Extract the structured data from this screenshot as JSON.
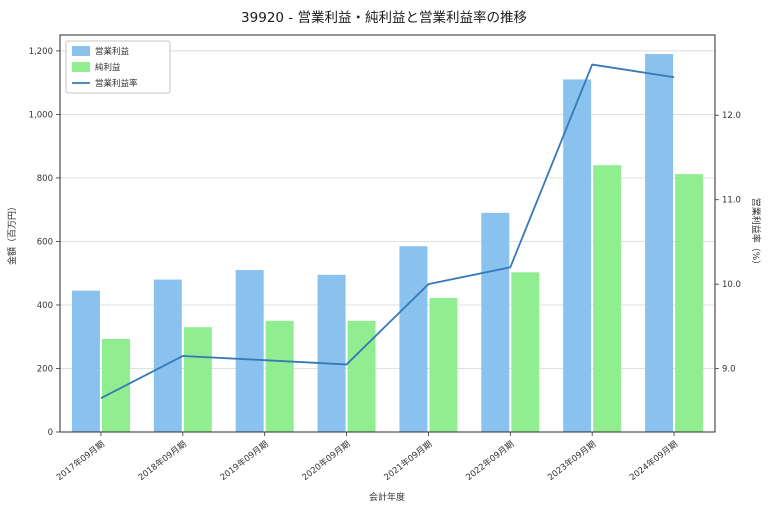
{
  "title": "39920 - 営業利益・純利益と営業利益率の推移",
  "chart_data": {
    "type": "bar",
    "title": "39920 - 営業利益・純利益と営業利益率の推移",
    "categories": [
      "2017年09月期",
      "2018年09月期",
      "2019年09月期",
      "2020年09月期",
      "2021年09月期",
      "2022年09月期",
      "2023年09月期",
      "2024年09月期"
    ],
    "series": [
      {
        "name": "営業利益",
        "type": "bar",
        "axis": "left",
        "color": "#89c2ef",
        "values": [
          445,
          480,
          510,
          495,
          585,
          690,
          1110,
          1190
        ]
      },
      {
        "name": "純利益",
        "type": "bar",
        "axis": "left",
        "color": "#90ee90",
        "values": [
          293,
          330,
          350,
          350,
          422,
          503,
          840,
          812
        ]
      },
      {
        "name": "営業利益率",
        "type": "line",
        "axis": "right",
        "color": "#357ab7",
        "values": [
          8.65,
          9.15,
          9.1,
          9.05,
          10.0,
          10.2,
          12.6,
          12.45
        ]
      }
    ],
    "xlabel": "会計年度",
    "ylabel_left": "金額（百万円）",
    "ylabel_right": "営業利益率（%）",
    "ylim_left": [
      0,
      1250
    ],
    "ytick_values_left": [
      0,
      200,
      400,
      600,
      800,
      1000,
      1200
    ],
    "ytick_labels_left": [
      "0",
      "200",
      "400",
      "600",
      "800",
      "1,000",
      "1,200"
    ],
    "ylim_right": [
      8.25,
      12.95
    ],
    "ytick_values_right": [
      9.0,
      10.0,
      11.0,
      12.0
    ],
    "ytick_labels_right": [
      "9.0",
      "10.0",
      "11.0",
      "12.0"
    ],
    "grid": true,
    "legend_position": "upper left",
    "legend_entries": [
      "営業利益",
      "純利益",
      "営業利益率"
    ]
  }
}
